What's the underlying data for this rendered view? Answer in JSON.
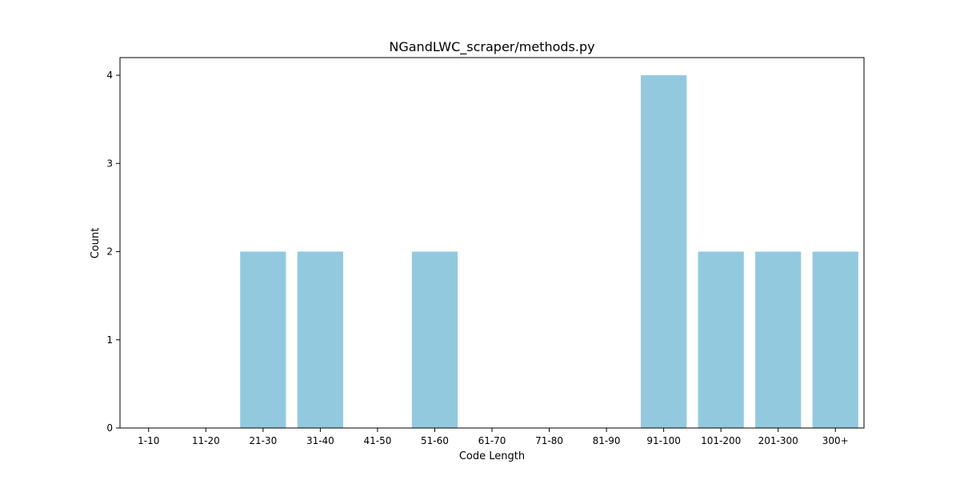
{
  "chart_data": {
    "type": "bar",
    "title": "NGandLWC_scraper/methods.py",
    "xlabel": "Code Length",
    "ylabel": "Count",
    "categories": [
      "1-10",
      "11-20",
      "21-30",
      "31-40",
      "41-50",
      "51-60",
      "61-70",
      "71-80",
      "81-90",
      "91-100",
      "101-200",
      "201-300",
      "300+"
    ],
    "values": [
      0,
      0,
      2,
      2,
      0,
      2,
      0,
      0,
      0,
      4,
      2,
      2,
      2
    ],
    "ylim": [
      0,
      4.2
    ],
    "yticks": [
      0,
      1,
      2,
      3,
      4
    ],
    "bar_color": "#93c9df",
    "grid": false,
    "legend": "none"
  }
}
